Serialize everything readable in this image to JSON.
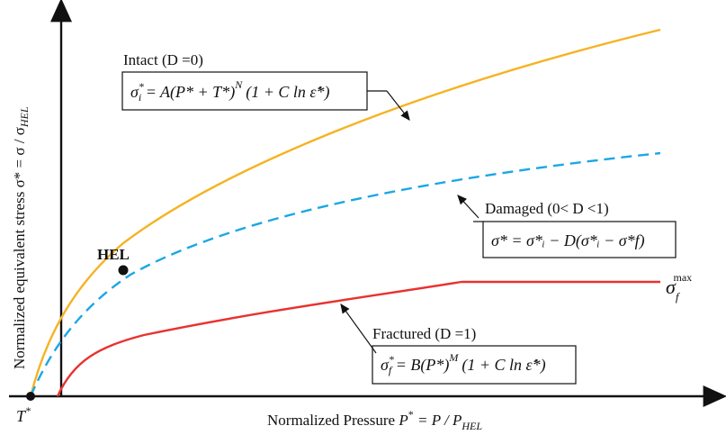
{
  "axes": {
    "y_title": {
      "main": "Normalized equivalent stress  σ* = σ / σ",
      "sub": "HEL"
    },
    "x_title": {
      "main": "Normalized Pressure  ",
      "p": "P",
      "star": "*",
      "rest": " = P / P",
      "sub": "HEL"
    },
    "origin_label": {
      "t": "T",
      "star": "*"
    }
  },
  "point": {
    "label": "HEL"
  },
  "curves": {
    "intact": {
      "label": "Intact (D =0)",
      "color": "#F5B323",
      "eq": {
        "lhs": "σ",
        "lhs_sup": "*",
        "lhs_sub": "i",
        "rhs": " = A(P* + T*)",
        "sup_n": "N",
        "tail": "(1 + C ln ε̇*)"
      }
    },
    "damaged": {
      "label": "Damaged (0< D <1)",
      "color": "#1AA7E6",
      "eq": {
        "text": "σ* = σ*ᵢ − D(σ*ᵢ − σ*f)"
      }
    },
    "fractured": {
      "label": "Fractured (D =1)",
      "color": "#E8322F",
      "eq": {
        "lhs": "σ",
        "lhs_sup": "*",
        "lhs_sub": "f",
        "rhs": " = B(P*)",
        "sup_m": "M",
        "tail": "(1 + C ln ε̇*)"
      }
    }
  },
  "sigma_max": {
    "base": "σ",
    "sub": "f",
    "sup": "max"
  }
}
